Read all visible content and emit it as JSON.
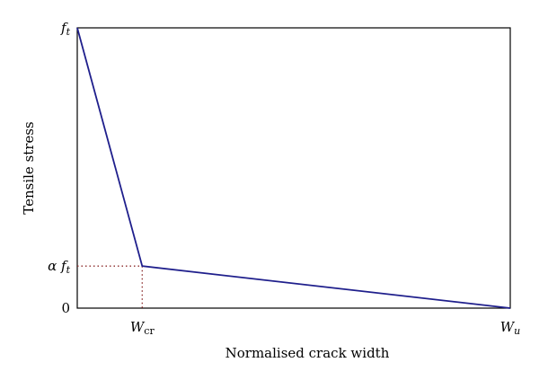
{
  "chart_data": {
    "type": "line",
    "xlabel": "Normalised crack width",
    "ylabel": "Tensile stress",
    "x_ticks": [
      {
        "main": "W",
        "sub": "cr",
        "value": 0.15
      },
      {
        "main": "W",
        "sub": "u",
        "value": 1.0
      }
    ],
    "y_ticks": [
      {
        "main": "0",
        "sub": "",
        "value": 0
      },
      {
        "main": "α f",
        "sub": "t",
        "value": 0.15
      },
      {
        "main": "f",
        "sub": "t",
        "value": 1.0
      }
    ],
    "xlim": [
      0,
      1.0
    ],
    "ylim": [
      0,
      1.0
    ],
    "series": [
      {
        "x": [
          0,
          0.15,
          1.0
        ],
        "y": [
          1.0,
          0.15,
          0
        ],
        "color": "#1f1f8c"
      }
    ],
    "guide_lines": {
      "point": [
        0.15,
        0.15
      ],
      "color": "#8b2a2a",
      "style": "dotted"
    },
    "grid": false,
    "legend": "none"
  }
}
